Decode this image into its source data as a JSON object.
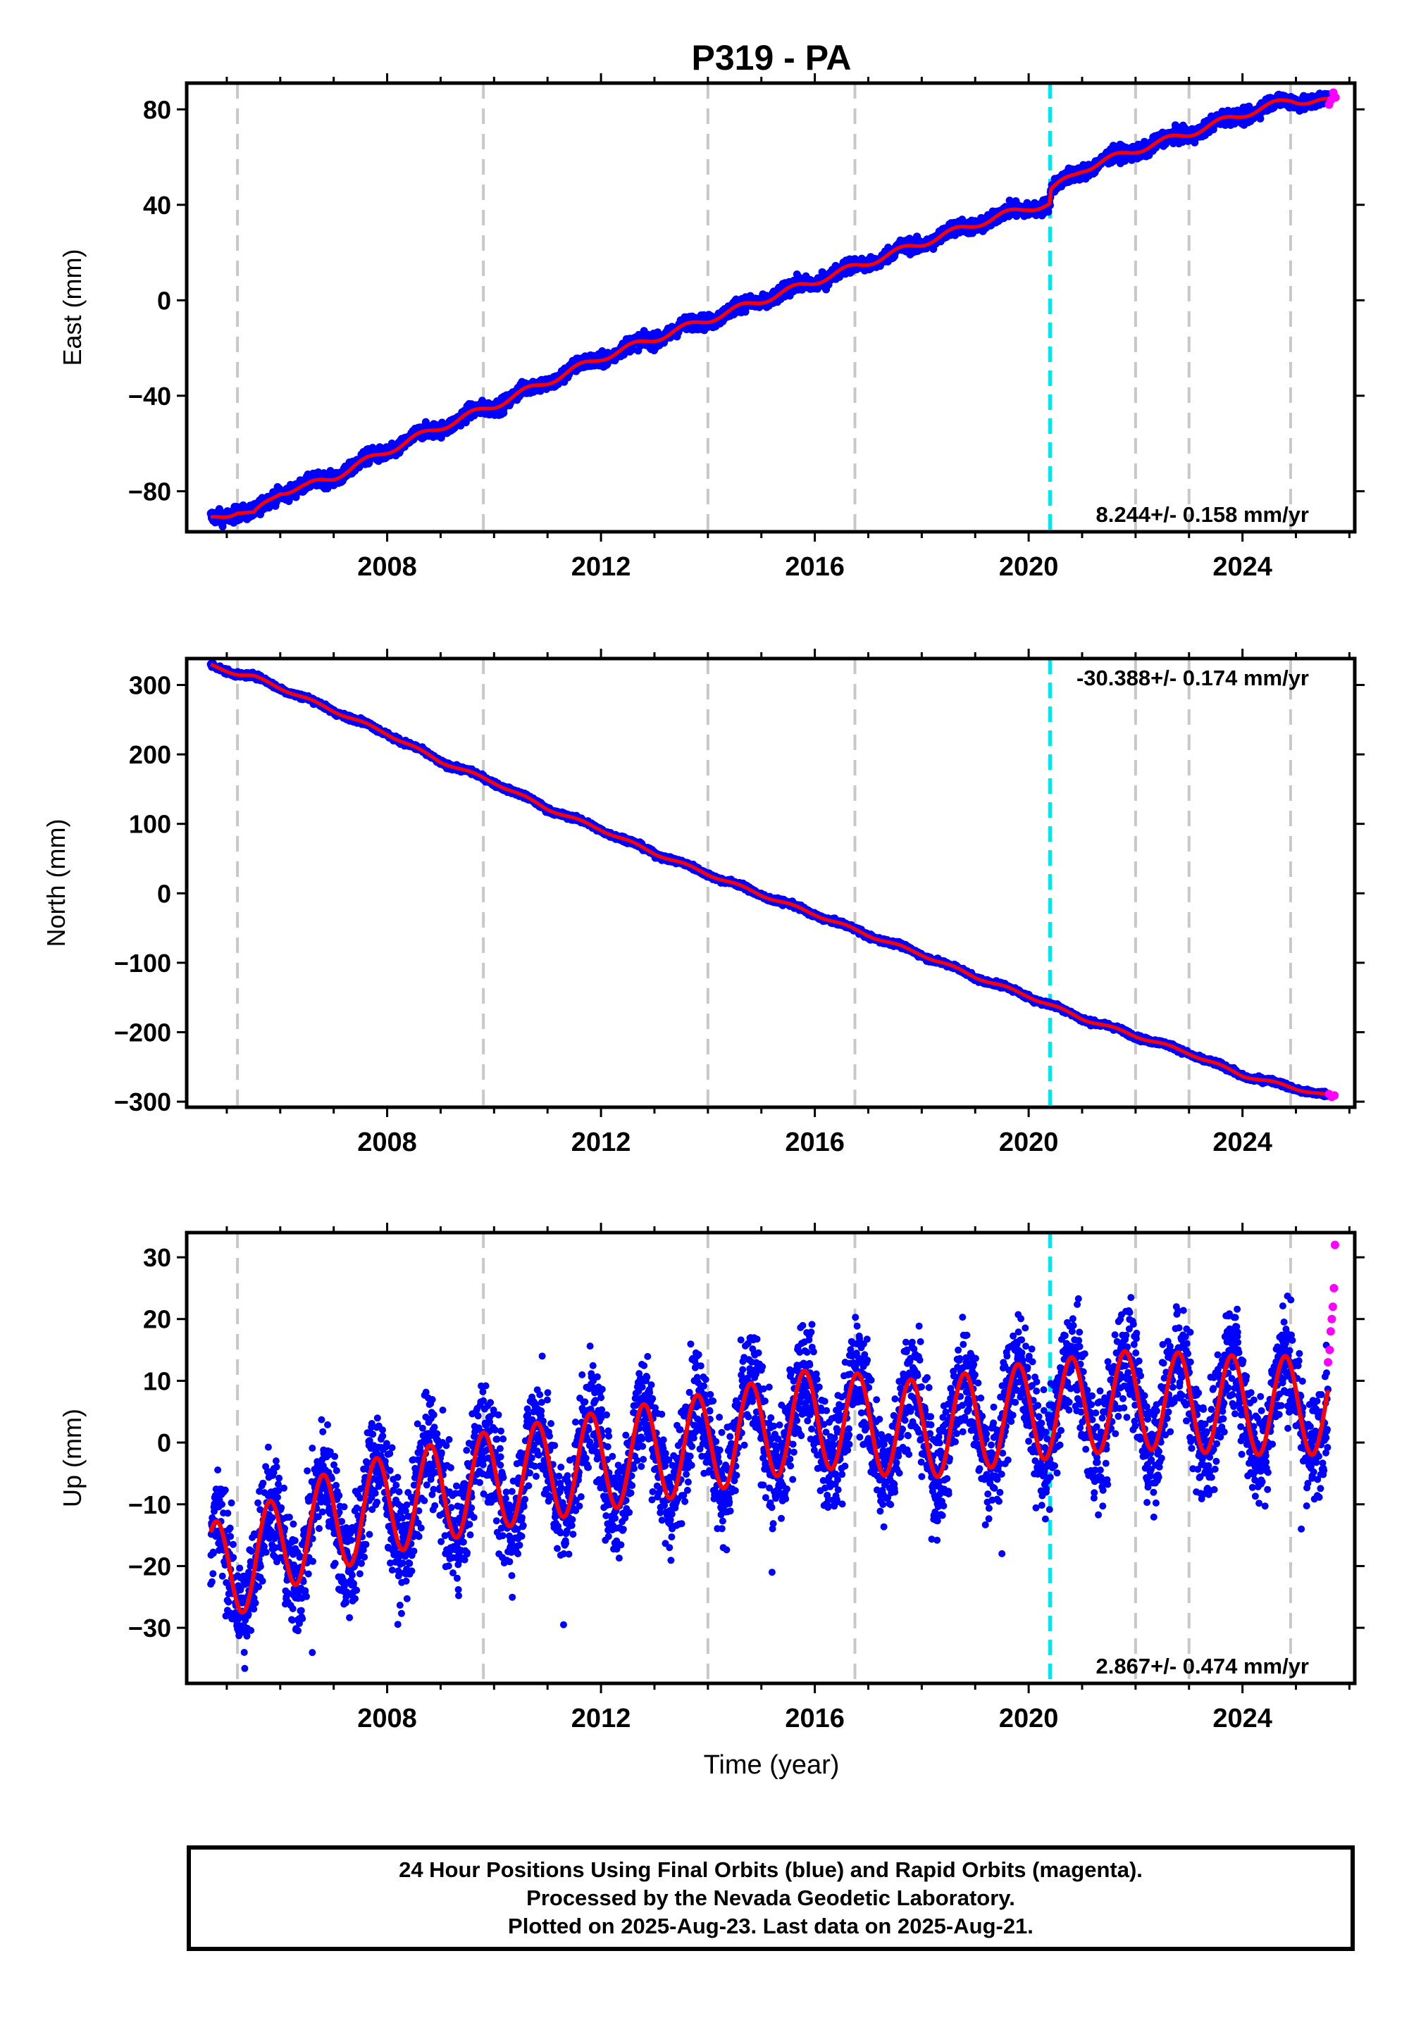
{
  "figure_title": "P319 - PA",
  "footer": {
    "line1": "24 Hour Positions Using Final Orbits (blue) and Rapid Orbits (magenta).",
    "line2": "Processed by the Nevada Geodetic Laboratory.",
    "line3": "Plotted on 2025-Aug-23. Last data on 2025-Aug-21."
  },
  "colors": {
    "final_orbits": "#0000ff",
    "rapid_orbits": "#ff00ff",
    "model_fit": "#ff0000",
    "equipment_change": "#c8c8c8",
    "earthquake": "#00e5ee"
  },
  "chart_data": [
    {
      "type": "scatter",
      "title": "P319 - PA",
      "ylabel": "East (mm)",
      "xlabel": "",
      "xlim": [
        2004.25,
        2026.1
      ],
      "ylim": [
        -97,
        91
      ],
      "xticks": [
        2008,
        2012,
        2016,
        2020,
        2024
      ],
      "yticks": [
        -80,
        -40,
        0,
        40,
        80
      ],
      "rate_label": "8.244+/- 0.158 mm/yr",
      "rate_position": "bottom-right",
      "grid": false,
      "equipment_change_lines": [
        2005.2,
        2009.8,
        2014.0,
        2016.75,
        2022.0,
        2023.0,
        2024.9
      ],
      "earthquake_lines": [
        2020.4
      ],
      "series": [
        {
          "kind": "final_positions",
          "x": [
            2004.7,
            2005.2,
            2005.5,
            2006.0,
            2006.5,
            2007.0,
            2008.0,
            2009.0,
            2010.0,
            2011.0,
            2012.0,
            2013.0,
            2014.0,
            2015.0,
            2016.0,
            2017.0,
            2018.0,
            2019.0,
            2020.0,
            2020.39,
            2020.42,
            2021.0,
            2022.0,
            2023.0,
            2024.0,
            2024.9,
            2025.6
          ],
          "y": [
            -92,
            -88,
            -90,
            -80,
            -78,
            -74,
            -63,
            -53,
            -44,
            -34,
            -24,
            -16,
            -8,
            0,
            8,
            16,
            24,
            32,
            39,
            40,
            46,
            55,
            63,
            70,
            78,
            84,
            83
          ],
          "scatter_mm": 2.5
        },
        {
          "kind": "model_fit",
          "x": [
            2004.7,
            2005.2,
            2005.5,
            2006.0,
            2006.5,
            2007.0,
            2008.0,
            2009.0,
            2010.0,
            2011.0,
            2012.0,
            2013.0,
            2014.0,
            2015.0,
            2016.0,
            2017.0,
            2018.0,
            2019.0,
            2020.0,
            2020.39,
            2020.42,
            2021.0,
            2022.0,
            2023.0,
            2024.0,
            2024.9,
            2025.6
          ],
          "y": [
            -92,
            -88,
            -90,
            -80,
            -78,
            -74,
            -63,
            -53,
            -44,
            -34,
            -24,
            -16,
            -8,
            0,
            8,
            16,
            24,
            32,
            39,
            40,
            46,
            55,
            63,
            70,
            78,
            84,
            83
          ],
          "seasonal_amp_mm": 1.5
        },
        {
          "kind": "rapid_positions",
          "x": [
            2025.62,
            2025.66,
            2025.7,
            2025.74
          ],
          "y": [
            82,
            84,
            87,
            85
          ]
        }
      ]
    },
    {
      "type": "scatter",
      "ylabel": "North (mm)",
      "xlabel": "",
      "xlim": [
        2004.25,
        2026.1
      ],
      "ylim": [
        -308,
        338
      ],
      "xticks": [
        2008,
        2012,
        2016,
        2020,
        2024
      ],
      "yticks": [
        -300,
        -200,
        -100,
        0,
        100,
        200,
        300
      ],
      "rate_label": "-30.388+/- 0.174 mm/yr",
      "rate_position": "top-right",
      "grid": false,
      "equipment_change_lines": [
        2005.2,
        2009.8,
        2014.0,
        2016.75,
        2022.0,
        2023.0,
        2024.9
      ],
      "earthquake_lines": [
        2020.4
      ],
      "series": [
        {
          "kind": "final_positions",
          "x": [
            2004.7,
            2005.2,
            2005.5,
            2006.0,
            2007.0,
            2008.0,
            2009.0,
            2010.0,
            2011.0,
            2012.0,
            2013.0,
            2014.0,
            2015.0,
            2016.0,
            2017.0,
            2018.0,
            2019.0,
            2020.0,
            2021.0,
            2022.0,
            2023.0,
            2024.0,
            2025.6
          ],
          "y": [
            328,
            316,
            312,
            296,
            263,
            230,
            190,
            160,
            122,
            92,
            58,
            28,
            -2,
            -30,
            -60,
            -88,
            -120,
            -148,
            -180,
            -205,
            -230,
            -262,
            -292
          ],
          "scatter_mm": 3
        },
        {
          "kind": "model_fit",
          "x": [
            2004.7,
            2005.2,
            2005.5,
            2006.0,
            2007.0,
            2008.0,
            2009.0,
            2010.0,
            2011.0,
            2012.0,
            2013.0,
            2014.0,
            2015.0,
            2016.0,
            2017.0,
            2018.0,
            2019.0,
            2020.0,
            2021.0,
            2022.0,
            2023.0,
            2024.0,
            2025.6
          ],
          "y": [
            328,
            316,
            312,
            296,
            263,
            230,
            190,
            160,
            122,
            92,
            58,
            28,
            -2,
            -30,
            -60,
            -88,
            -120,
            -148,
            -180,
            -205,
            -230,
            -262,
            -292
          ],
          "seasonal_amp_mm": 2
        },
        {
          "kind": "rapid_positions",
          "x": [
            2025.62,
            2025.67,
            2025.72
          ],
          "y": [
            -289,
            -293,
            -291
          ]
        }
      ]
    },
    {
      "type": "scatter",
      "ylabel": "Up (mm)",
      "xlabel": "Time (year)",
      "xlim": [
        2004.25,
        2026.1
      ],
      "ylim": [
        -39,
        34
      ],
      "xticks": [
        2008,
        2012,
        2016,
        2020,
        2024
      ],
      "yticks": [
        -30,
        -20,
        -10,
        0,
        10,
        20,
        30
      ],
      "rate_label": "2.867+/- 0.474 mm/yr",
      "rate_position": "bottom-right",
      "grid": false,
      "equipment_change_lines": [
        2005.2,
        2009.8,
        2014.0,
        2016.75,
        2022.0,
        2023.0,
        2024.9
      ],
      "earthquake_lines": [
        2020.4
      ],
      "series": [
        {
          "kind": "model_fit",
          "x_range": [
            2004.7,
            2025.6
          ],
          "trend_x": [
            2004.7,
            2005.5,
            2006.5,
            2008.0,
            2010.0,
            2012.0,
            2014.0,
            2016.0,
            2018.0,
            2020.0,
            2022.0,
            2024.0,
            2025.6
          ],
          "trend_y": [
            -21,
            -19,
            -14,
            -10,
            -6,
            -3,
            0,
            4,
            2,
            5,
            7,
            6,
            6
          ],
          "seasonal_amp_mm": 8,
          "seasonal_peak_year_fraction": 0.8
        },
        {
          "kind": "final_positions",
          "scatter_mm": 4.5
        },
        {
          "kind": "rapid_positions",
          "x": [
            2025.6,
            2025.63,
            2025.65,
            2025.67,
            2025.69,
            2025.71,
            2025.73
          ],
          "y": [
            13,
            15,
            18,
            20,
            22,
            25,
            32
          ]
        }
      ]
    }
  ]
}
